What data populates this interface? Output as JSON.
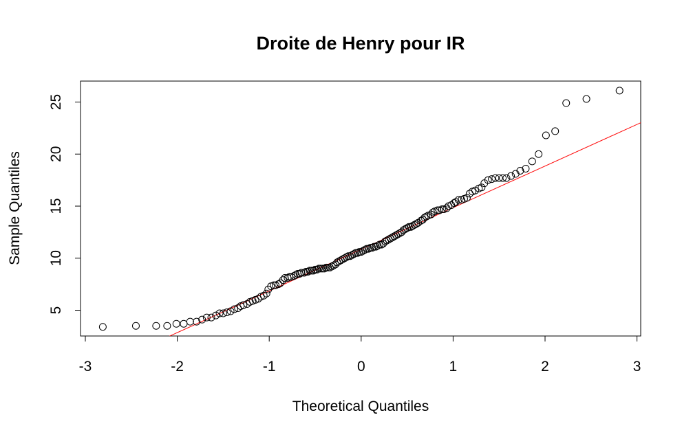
{
  "chart_data": {
    "type": "scatter",
    "title": "Droite de Henry pour IR",
    "xlabel": "Theoretical Quantiles",
    "ylabel": "Sample Quantiles",
    "xlim": [
      -3,
      3
    ],
    "ylim": [
      2.5,
      26.5
    ],
    "x_ticks": [
      -3,
      -2,
      -1,
      0,
      1,
      2,
      3
    ],
    "y_ticks": [
      5,
      10,
      15,
      20,
      25
    ],
    "grid": false,
    "colors": {
      "points": "#000000",
      "reference_line": "#ff0000"
    },
    "reference_line": {
      "intercept": 10.85,
      "slope": 4.0
    },
    "points": [
      [
        -2.81,
        3.4
      ],
      [
        -2.45,
        3.5
      ],
      [
        -2.23,
        3.5
      ],
      [
        -2.11,
        3.5
      ],
      [
        -2.01,
        3.7
      ],
      [
        -1.93,
        3.7
      ],
      [
        -1.86,
        3.9
      ],
      [
        -1.79,
        3.9
      ],
      [
        -1.73,
        4.1
      ],
      [
        -1.68,
        4.3
      ],
      [
        -1.63,
        4.3
      ],
      [
        -1.58,
        4.5
      ],
      [
        -1.54,
        4.7
      ],
      [
        -1.5,
        4.7
      ],
      [
        -1.46,
        4.8
      ],
      [
        -1.42,
        4.9
      ],
      [
        -1.38,
        5.1
      ],
      [
        -1.34,
        5.2
      ],
      [
        -1.31,
        5.4
      ],
      [
        -1.28,
        5.5
      ],
      [
        -1.24,
        5.6
      ],
      [
        -1.21,
        5.8
      ],
      [
        -1.18,
        5.9
      ],
      [
        -1.15,
        6.0
      ],
      [
        -1.12,
        6.1
      ],
      [
        -1.09,
        6.3
      ],
      [
        -1.06,
        6.4
      ],
      [
        -1.03,
        6.6
      ],
      [
        -1.01,
        7.0
      ],
      [
        -0.98,
        7.3
      ],
      [
        -0.95,
        7.4
      ],
      [
        -0.93,
        7.4
      ],
      [
        -0.9,
        7.5
      ],
      [
        -0.88,
        7.6
      ],
      [
        -0.85,
        7.9
      ],
      [
        -0.83,
        8.1
      ],
      [
        -0.8,
        8.1
      ],
      [
        -0.78,
        8.2
      ],
      [
        -0.76,
        8.2
      ],
      [
        -0.73,
        8.3
      ],
      [
        -0.71,
        8.4
      ],
      [
        -0.69,
        8.5
      ],
      [
        -0.67,
        8.5
      ],
      [
        -0.65,
        8.6
      ],
      [
        -0.62,
        8.6
      ],
      [
        -0.6,
        8.7
      ],
      [
        -0.58,
        8.7
      ],
      [
        -0.56,
        8.8
      ],
      [
        -0.54,
        8.8
      ],
      [
        -0.52,
        8.8
      ],
      [
        -0.5,
        8.9
      ],
      [
        -0.48,
        8.9
      ],
      [
        -0.46,
        9.0
      ],
      [
        -0.44,
        9.0
      ],
      [
        -0.42,
        9.0
      ],
      [
        -0.4,
        9.0
      ],
      [
        -0.38,
        9.1
      ],
      [
        -0.36,
        9.1
      ],
      [
        -0.34,
        9.1
      ],
      [
        -0.32,
        9.2
      ],
      [
        -0.3,
        9.3
      ],
      [
        -0.28,
        9.4
      ],
      [
        -0.26,
        9.6
      ],
      [
        -0.24,
        9.7
      ],
      [
        -0.22,
        9.8
      ],
      [
        -0.2,
        9.9
      ],
      [
        -0.18,
        10.0
      ],
      [
        -0.16,
        10.1
      ],
      [
        -0.14,
        10.2
      ],
      [
        -0.12,
        10.2
      ],
      [
        -0.1,
        10.3
      ],
      [
        -0.08,
        10.4
      ],
      [
        -0.06,
        10.5
      ],
      [
        -0.04,
        10.5
      ],
      [
        -0.02,
        10.6
      ],
      [
        0.0,
        10.6
      ],
      [
        0.02,
        10.7
      ],
      [
        0.04,
        10.8
      ],
      [
        0.06,
        10.9
      ],
      [
        0.08,
        10.9
      ],
      [
        0.1,
        11.0
      ],
      [
        0.12,
        11.0
      ],
      [
        0.14,
        11.1
      ],
      [
        0.16,
        11.1
      ],
      [
        0.18,
        11.2
      ],
      [
        0.2,
        11.3
      ],
      [
        0.22,
        11.3
      ],
      [
        0.24,
        11.4
      ],
      [
        0.26,
        11.6
      ],
      [
        0.28,
        11.7
      ],
      [
        0.3,
        11.8
      ],
      [
        0.32,
        11.9
      ],
      [
        0.34,
        12.0
      ],
      [
        0.36,
        12.1
      ],
      [
        0.38,
        12.2
      ],
      [
        0.4,
        12.3
      ],
      [
        0.42,
        12.4
      ],
      [
        0.44,
        12.5
      ],
      [
        0.46,
        12.7
      ],
      [
        0.48,
        12.8
      ],
      [
        0.5,
        12.9
      ],
      [
        0.52,
        13.0
      ],
      [
        0.54,
        13.0
      ],
      [
        0.56,
        13.1
      ],
      [
        0.58,
        13.2
      ],
      [
        0.6,
        13.3
      ],
      [
        0.62,
        13.4
      ],
      [
        0.65,
        13.6
      ],
      [
        0.67,
        13.7
      ],
      [
        0.69,
        13.9
      ],
      [
        0.71,
        14.0
      ],
      [
        0.73,
        14.1
      ],
      [
        0.76,
        14.2
      ],
      [
        0.78,
        14.4
      ],
      [
        0.8,
        14.5
      ],
      [
        0.83,
        14.6
      ],
      [
        0.85,
        14.6
      ],
      [
        0.88,
        14.7
      ],
      [
        0.9,
        14.7
      ],
      [
        0.93,
        14.8
      ],
      [
        0.95,
        15.0
      ],
      [
        0.98,
        15.1
      ],
      [
        1.01,
        15.3
      ],
      [
        1.03,
        15.4
      ],
      [
        1.06,
        15.6
      ],
      [
        1.09,
        15.6
      ],
      [
        1.12,
        15.7
      ],
      [
        1.15,
        15.8
      ],
      [
        1.18,
        16.2
      ],
      [
        1.21,
        16.4
      ],
      [
        1.24,
        16.5
      ],
      [
        1.28,
        16.7
      ],
      [
        1.31,
        16.8
      ],
      [
        1.34,
        17.2
      ],
      [
        1.38,
        17.5
      ],
      [
        1.42,
        17.6
      ],
      [
        1.46,
        17.7
      ],
      [
        1.5,
        17.7
      ],
      [
        1.54,
        17.7
      ],
      [
        1.58,
        17.7
      ],
      [
        1.63,
        17.9
      ],
      [
        1.68,
        18.1
      ],
      [
        1.73,
        18.4
      ],
      [
        1.79,
        18.6
      ],
      [
        1.86,
        19.3
      ],
      [
        1.93,
        20.0
      ],
      [
        2.01,
        21.8
      ],
      [
        2.11,
        22.2
      ],
      [
        2.23,
        24.9
      ],
      [
        2.45,
        25.3
      ],
      [
        2.81,
        26.1
      ]
    ]
  }
}
